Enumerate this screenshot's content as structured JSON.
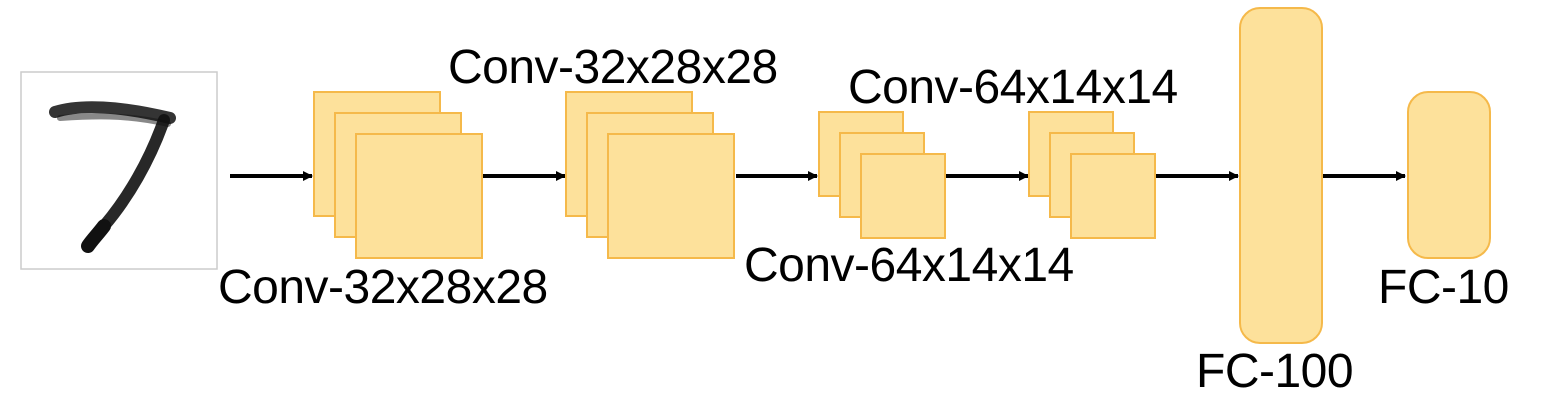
{
  "colors": {
    "layer_fill": "#fde19b",
    "layer_stroke": "#f5b94a",
    "arrow": "#000000",
    "digit_ink": "#111111",
    "input_border": "#cccccc"
  },
  "input": {
    "digit": "7"
  },
  "labels": {
    "conv1": "Conv-32x28x28",
    "conv2": "Conv-32x28x28",
    "conv3": "Conv-64x14x14",
    "conv4": "Conv-64x14x14",
    "fc1": "FC-100",
    "fc2": "FC-10"
  }
}
